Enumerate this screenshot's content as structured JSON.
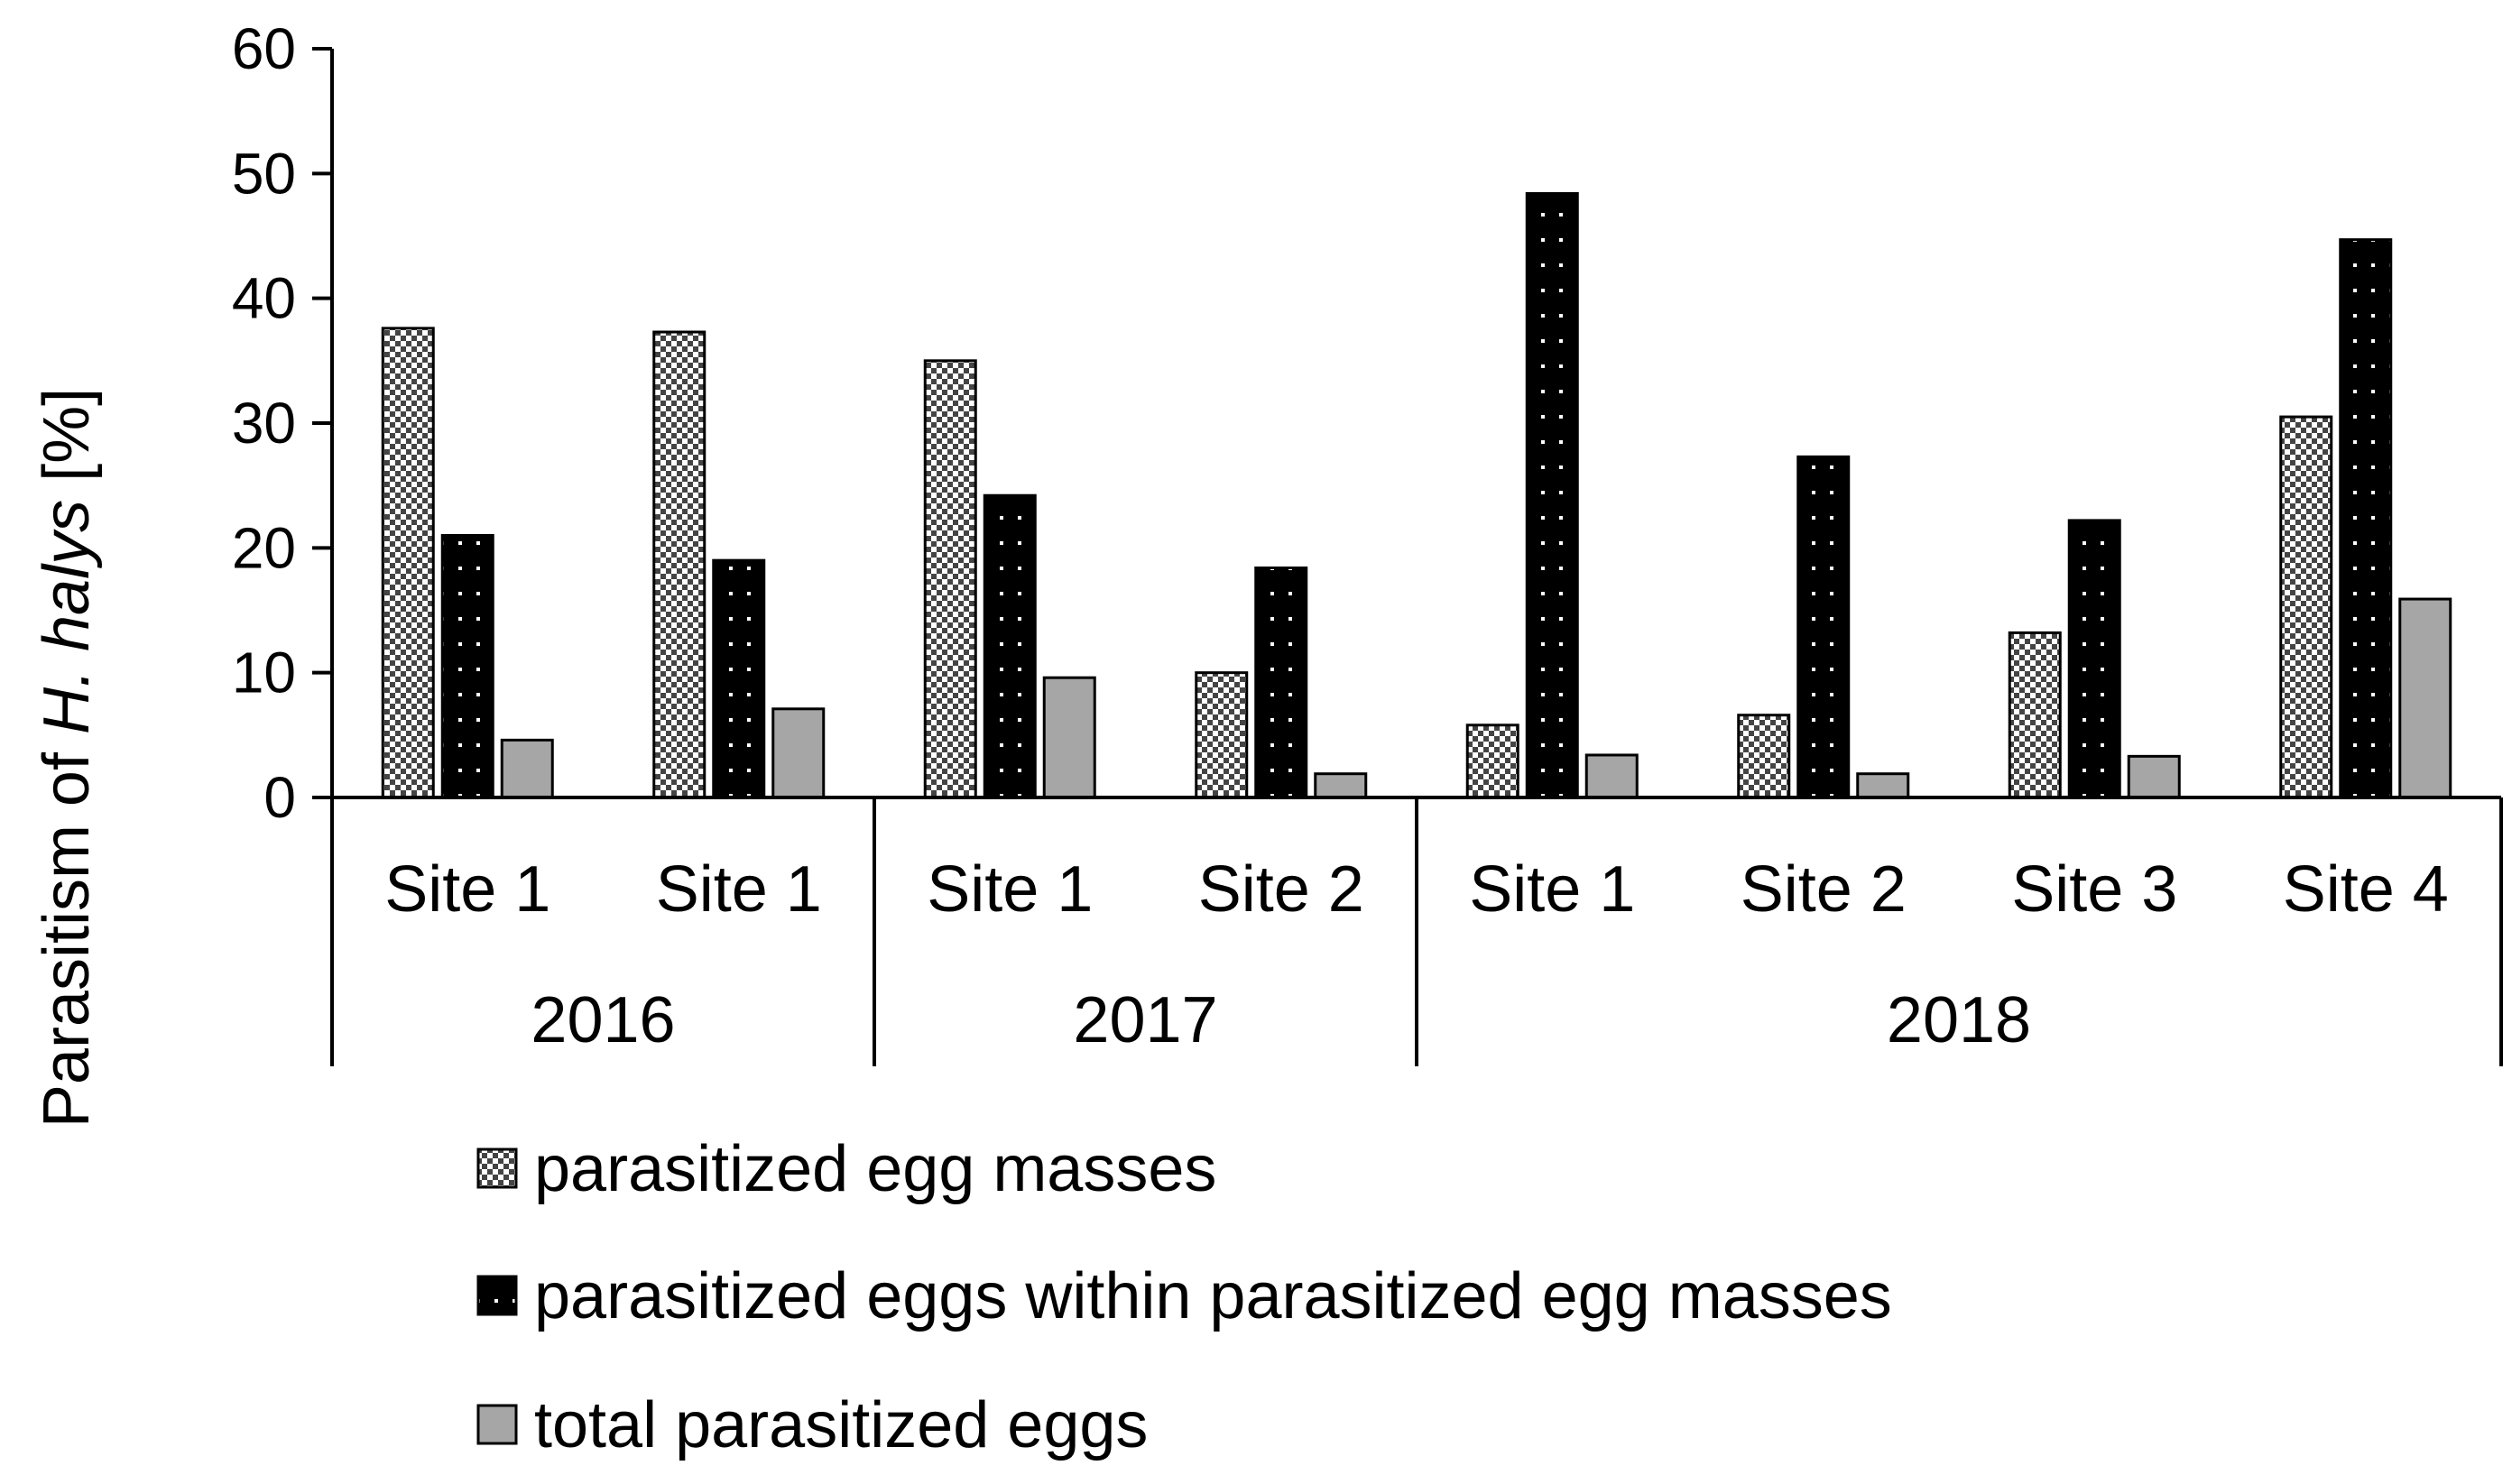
{
  "chart_data": {
    "type": "bar",
    "title": "",
    "xlabel": "",
    "ylabel": {
      "prefix": "Parasitism of ",
      "italic": "H. halys",
      "suffix": " [%]"
    },
    "ylim": [
      0,
      60
    ],
    "yticks": [
      0,
      10,
      20,
      30,
      40,
      50,
      60
    ],
    "grid": false,
    "legend_position": "bottom",
    "categories": [
      "Site 1",
      "Site 1",
      "Site 1",
      "Site 2",
      "Site 1",
      "Site 2",
      "Site 3",
      "Site 4"
    ],
    "groups": [
      {
        "label": "2016",
        "count": 2
      },
      {
        "label": "2017",
        "count": 2
      },
      {
        "label": "2018",
        "count": 4
      }
    ],
    "series": [
      {
        "name": "parasitized egg masses",
        "pattern": "checker",
        "values": [
          37.6,
          37.3,
          35.0,
          10.0,
          5.8,
          6.6,
          13.2,
          30.5
        ]
      },
      {
        "name": "parasitized eggs within parasitized egg masses",
        "pattern": "dots",
        "values": [
          21.0,
          19.0,
          24.2,
          18.4,
          48.4,
          27.3,
          22.2,
          44.7
        ]
      },
      {
        "name": "total parasitized eggs",
        "pattern": "gray",
        "values": [
          4.6,
          7.1,
          9.6,
          1.9,
          3.4,
          1.9,
          3.3,
          15.9
        ]
      }
    ]
  }
}
